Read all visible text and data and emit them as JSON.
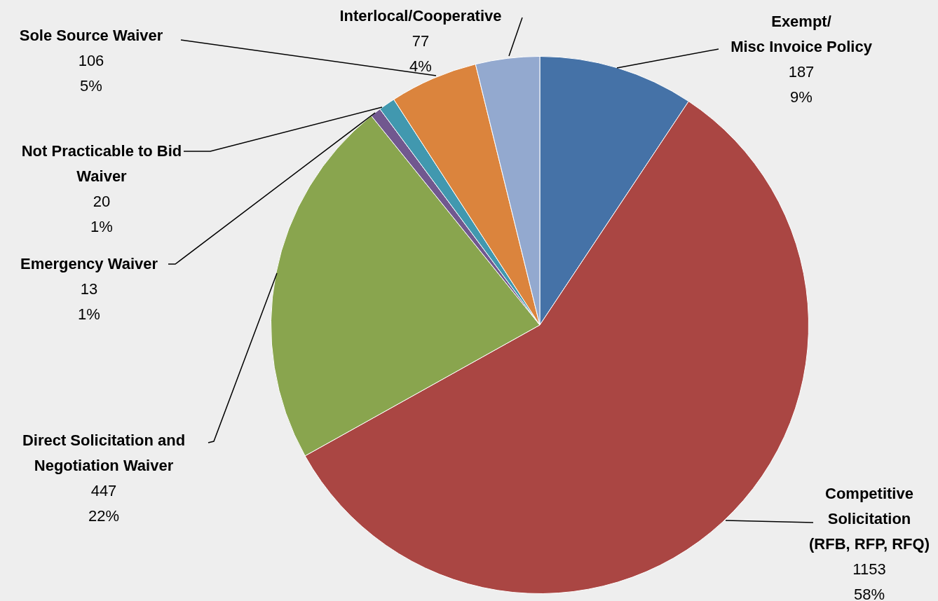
{
  "chart_data": {
    "type": "pie",
    "categories": [
      "Exempt/\nMisc Invoice Policy",
      "Competitive\nSolicitation\n(RFB, RFP, RFQ)",
      "Direct Solicitation and\nNegotiation Waiver",
      "Emergency Waiver",
      "Not Practicable to Bid\nWaiver",
      "Sole Source Waiver",
      "Interlocal/Cooperative"
    ],
    "values": [
      187,
      1153,
      447,
      13,
      20,
      106,
      77
    ],
    "colors": [
      "#4572a7",
      "#aa4643",
      "#89a54e",
      "#71588f",
      "#4198af",
      "#db843d",
      "#93a9cf"
    ],
    "value_labels": [
      "187\n9%",
      "1153\n58%",
      "447\n22%",
      "13\n1%",
      "20\n1%",
      "106\n5%",
      "77\n4%"
    ],
    "legend": false
  }
}
